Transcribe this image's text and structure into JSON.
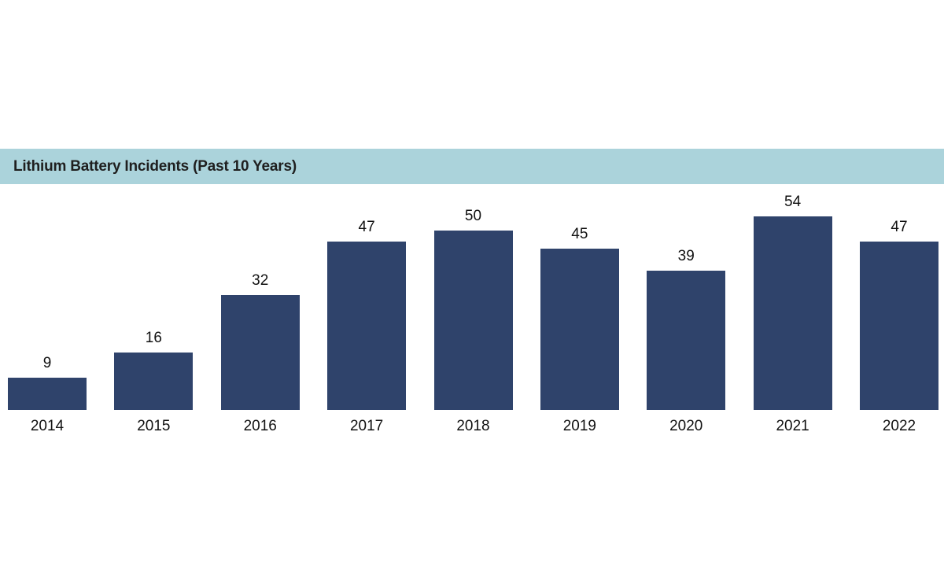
{
  "header": {
    "title": "Lithium Battery Incidents (Past 10 Years)"
  },
  "colors": {
    "banner_background": "#ABD3DB",
    "bar_fill": "#2F436B",
    "title_text": "#1F1F1F",
    "label_text": "#111111",
    "page_background": "#FFFFFF"
  },
  "chart_data": {
    "type": "bar",
    "title": "Lithium Battery Incidents (Past 10 Years)",
    "categories": [
      "2014",
      "2015",
      "2016",
      "2017",
      "2018",
      "2019",
      "2020",
      "2021",
      "2022"
    ],
    "values": [
      9,
      16,
      32,
      47,
      50,
      45,
      39,
      54,
      47
    ],
    "xlabel": "",
    "ylabel": "",
    "ylim": [
      0,
      60
    ],
    "grid": false,
    "legend": false,
    "axes_visible": false,
    "value_labels_visible": true
  }
}
